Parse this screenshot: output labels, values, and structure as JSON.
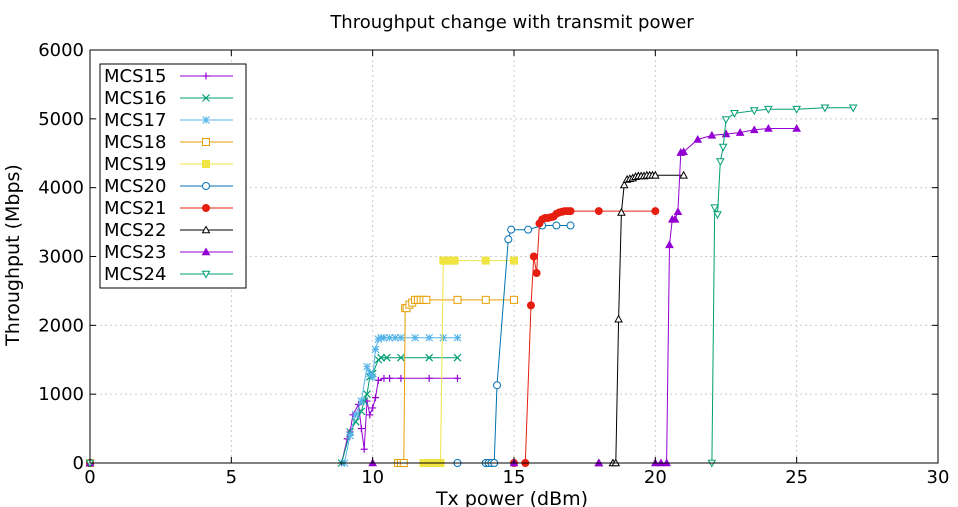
{
  "chart_data": {
    "type": "line",
    "title": "Throughput change with transmit power",
    "xlabel": "Tx power (dBm)",
    "ylabel": "Throughput (Mbps)",
    "xlim": [
      0,
      30
    ],
    "ylim": [
      0,
      6000
    ],
    "x_ticks": [
      "0",
      "5",
      "10",
      "15",
      "20",
      "25",
      "30"
    ],
    "y_ticks": [
      "0",
      "1000",
      "2000",
      "3000",
      "4000",
      "5000",
      "6000"
    ],
    "x_tick_values": [
      0,
      5,
      10,
      15,
      20,
      25,
      30
    ],
    "y_tick_values": [
      0,
      1000,
      2000,
      3000,
      4000,
      5000,
      6000
    ],
    "grid": true,
    "legend_position": "top-left",
    "series": [
      {
        "name": "MCS15",
        "color": "#9400d3",
        "marker": "plus",
        "x": [
          0,
          8.9,
          9.1,
          9.2,
          9.3,
          9.5,
          9.6,
          9.7,
          9.8,
          9.9,
          10.0,
          10.1,
          10.2,
          10.4,
          10.6,
          11.0,
          12.0,
          13.0
        ],
        "y": [
          0,
          0,
          350,
          450,
          700,
          850,
          500,
          200,
          900,
          700,
          800,
          950,
          1200,
          1230,
          1230,
          1230,
          1230,
          1230
        ]
      },
      {
        "name": "MCS16",
        "color": "#009e73",
        "marker": "x",
        "x": [
          0,
          8.9,
          9.2,
          9.4,
          9.6,
          9.7,
          9.8,
          9.9,
          10.0,
          10.2,
          10.3,
          10.5,
          11.0,
          12.0,
          13.0
        ],
        "y": [
          0,
          0,
          450,
          600,
          750,
          900,
          1000,
          1250,
          1300,
          1500,
          1530,
          1530,
          1530,
          1530,
          1530
        ]
      },
      {
        "name": "MCS17",
        "color": "#56b4e9",
        "marker": "star",
        "x": [
          0,
          9.0,
          9.2,
          9.4,
          9.6,
          9.8,
          9.9,
          10.0,
          10.1,
          10.2,
          10.3,
          10.4,
          10.6,
          10.8,
          11.0,
          11.5,
          12.0,
          12.5,
          13.0
        ],
        "y": [
          0,
          0,
          400,
          700,
          900,
          1400,
          1300,
          1250,
          1650,
          1800,
          1820,
          1820,
          1820,
          1820,
          1820,
          1820,
          1820,
          1820,
          1820
        ]
      },
      {
        "name": "MCS18",
        "color": "#e69f00",
        "marker": "square",
        "x": [
          0,
          10.9,
          11.0,
          11.1,
          11.15,
          11.2,
          11.3,
          11.4,
          11.5,
          11.6,
          11.7,
          11.8,
          11.9,
          13.0,
          14.0,
          15.0
        ],
        "y": [
          0,
          0,
          0,
          0,
          2250,
          2250,
          2300,
          2330,
          2370,
          2370,
          2370,
          2370,
          2370,
          2370,
          2370,
          2370
        ]
      },
      {
        "name": "MCS19",
        "color": "#f0e442",
        "marker": "filled-square",
        "x": [
          0,
          11.8,
          12.0,
          12.2,
          12.4,
          12.5,
          12.6,
          12.7,
          12.8,
          12.9,
          14.0,
          15.0
        ],
        "y": [
          0,
          0,
          0,
          0,
          0,
          2940,
          2940,
          2940,
          2940,
          2940,
          2940,
          2940
        ]
      },
      {
        "name": "MCS20",
        "color": "#0072b2",
        "marker": "circle",
        "x": [
          0,
          13.0,
          14.0,
          14.1,
          14.2,
          14.3,
          14.4,
          14.8,
          14.9,
          15.5,
          16.0,
          16.5,
          17.0
        ],
        "y": [
          0,
          0,
          0,
          0,
          0,
          0,
          1130,
          3250,
          3390,
          3390,
          3450,
          3450,
          3450
        ]
      },
      {
        "name": "MCS21",
        "color": "#e51e10",
        "marker": "filled-circle",
        "x": [
          0,
          15.0,
          15.4,
          15.6,
          15.7,
          15.8,
          15.9,
          16.0,
          16.1,
          16.2,
          16.3,
          16.4,
          16.5,
          16.6,
          16.7,
          16.8,
          16.9,
          17.0,
          18.0,
          20.0
        ],
        "y": [
          0,
          0,
          0,
          2290,
          3000,
          2760,
          3480,
          3540,
          3560,
          3560,
          3570,
          3580,
          3620,
          3640,
          3650,
          3660,
          3660,
          3660,
          3660,
          3660
        ]
      },
      {
        "name": "MCS22",
        "color": "#000000",
        "marker": "triangle",
        "x": [
          0,
          18.0,
          18.5,
          18.6,
          18.7,
          18.8,
          18.9,
          19.0,
          19.1,
          19.2,
          19.3,
          19.4,
          19.5,
          19.6,
          19.7,
          19.8,
          19.9,
          20.0,
          21.0
        ],
        "y": [
          0,
          0,
          0,
          0,
          2090,
          3640,
          4040,
          4120,
          4130,
          4140,
          4160,
          4170,
          4170,
          4170,
          4180,
          4180,
          4180,
          4180,
          4180
        ]
      },
      {
        "name": "MCS23",
        "color": "#9400d3",
        "marker": "filled-triangle",
        "x": [
          0,
          10.0,
          15.0,
          18.0,
          20.0,
          20.2,
          20.4,
          20.5,
          20.6,
          20.7,
          20.8,
          20.9,
          21.0,
          21.5,
          22.0,
          22.5,
          23.0,
          23.5,
          24.0,
          25.0
        ],
        "y": [
          0,
          0,
          0,
          0,
          0,
          0,
          0,
          3170,
          3540,
          3540,
          3650,
          4510,
          4520,
          4700,
          4760,
          4780,
          4800,
          4840,
          4860,
          4860
        ]
      },
      {
        "name": "MCS24",
        "color": "#009e73",
        "marker": "triangle-down",
        "x": [
          0,
          22.0,
          22.1,
          22.2,
          22.3,
          22.4,
          22.5,
          22.8,
          23.5,
          24.0,
          25.0,
          26.0,
          27.0
        ],
        "y": [
          0,
          0,
          3710,
          3610,
          4380,
          4590,
          4990,
          5080,
          5120,
          5140,
          5140,
          5160,
          5160
        ]
      }
    ]
  }
}
